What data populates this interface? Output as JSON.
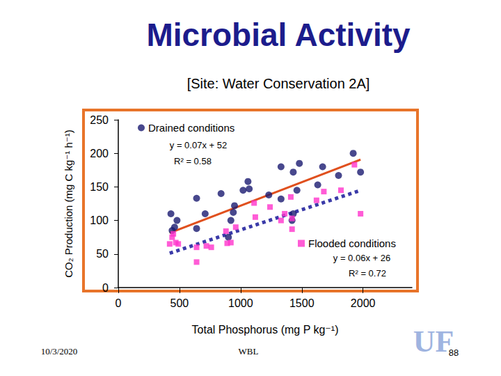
{
  "chart_data": {
    "type": "scatter",
    "title": "Microbial Activity",
    "subtitle": "[Site: Water Conservation 2A]",
    "x_label": "Total Phosphorus (mg P kg⁻¹)",
    "y_label": "CO₂ Production (mg C kg⁻¹ h⁻¹)",
    "xlim": [
      0,
      2400
    ],
    "xticks": [
      0,
      500,
      1000,
      1500,
      2000
    ],
    "ylim": [
      0,
      250
    ],
    "yticks": [
      0,
      50,
      100,
      150,
      200,
      250
    ],
    "grid": false,
    "series": [
      {
        "name": "Drained conditions",
        "color": "#1a1a70",
        "marker": "circle",
        "x": [
          430,
          440,
          460,
          480,
          640,
          640,
          710,
          840,
          900,
          920,
          940,
          950,
          1020,
          1060,
          1070,
          1230,
          1330,
          1330,
          1420,
          1430,
          1430,
          1460,
          1480,
          1630,
          1670,
          1800,
          1920,
          1980
        ],
        "values": [
          110,
          85,
          90,
          100,
          133,
          88,
          110,
          140,
          75,
          100,
          112,
          122,
          145,
          158,
          147,
          138,
          180,
          132,
          100,
          172,
          110,
          145,
          185,
          153,
          180,
          167,
          200,
          172
        ],
        "fit": {
          "label": "y = 0.07x + 52",
          "r2": "R² = 0.58",
          "color": "#e0501e",
          "line_style": "solid",
          "x": [
            420,
            1980
          ],
          "values": [
            81.4,
            190.6
          ]
        }
      },
      {
        "name": "Flooded conditions",
        "color": "#ff33cc",
        "marker": "square",
        "x": [
          420,
          440,
          450,
          470,
          490,
          640,
          640,
          720,
          760,
          880,
          890,
          920,
          960,
          1110,
          1120,
          1240,
          1330,
          1360,
          1410,
          1420,
          1420,
          1620,
          1680,
          1820,
          1930,
          1980
        ],
        "values": [
          65,
          75,
          80,
          67,
          65,
          60,
          38,
          62,
          60,
          84,
          66,
          67,
          90,
          126,
          105,
          120,
          100,
          110,
          135,
          87,
          103,
          130,
          143,
          145,
          183,
          110
        ],
        "fit": {
          "label": "y = 0.06x + 26",
          "r2": "R² = 0.72",
          "color": "#3a3aa8",
          "line_style": "dotted",
          "x": [
            420,
            1980
          ],
          "values": [
            51.2,
            144.8
          ]
        }
      }
    ],
    "footer": {
      "date": "10/3/2020",
      "author": "WBL",
      "logo": "UF",
      "page": "88"
    }
  }
}
